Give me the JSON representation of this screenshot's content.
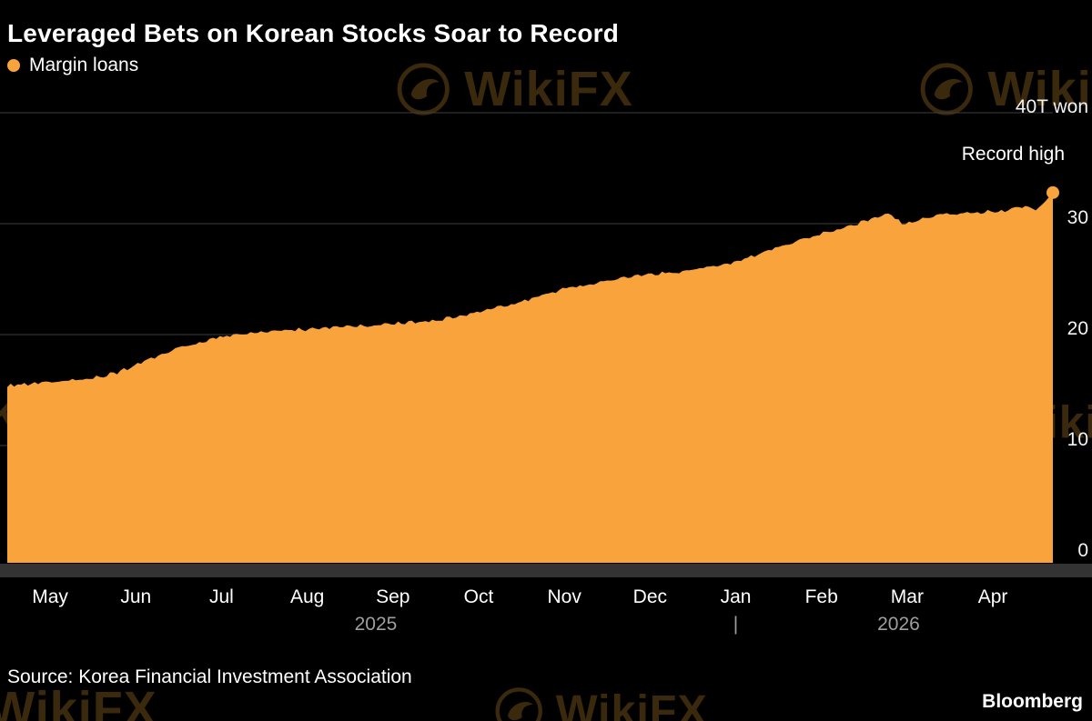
{
  "page": {
    "title": "Leveraged Bets on Korean Stocks Soar to Record"
  },
  "legend": {
    "label": "Margin loans",
    "color": "#F8A33B"
  },
  "annotation": "Record high",
  "footer": {
    "source": "Source: Korea Financial Investment Association",
    "brand": "Bloomberg"
  },
  "watermark": {
    "text": "WikiFX",
    "icon": "eagle-badge-icon"
  },
  "colors": {
    "background": "#000000",
    "area": "#F8A33B",
    "gridline": "#3E3E3E",
    "axis_band": "#333333",
    "year_label": "#9E9E9E",
    "text": "#FFFFFF"
  },
  "chart_data": {
    "type": "area",
    "title": "Leveraged Bets on Korean Stocks Soar to Record",
    "series_name": "Margin loans",
    "unit": "T won",
    "ylim": [
      0,
      40
    ],
    "grid": true,
    "legend_position": "top-left",
    "yticks": [
      {
        "value": 0,
        "label": "0"
      },
      {
        "value": 10,
        "label": "10"
      },
      {
        "value": 20,
        "label": "20"
      },
      {
        "value": 30,
        "label": "30"
      },
      {
        "value": 40,
        "label": "40T won"
      }
    ],
    "months": [
      "May",
      "Jun",
      "Jul",
      "Aug",
      "Sep",
      "Oct",
      "Nov",
      "Dec",
      "Jan",
      "Feb",
      "Mar",
      "Apr"
    ],
    "year_markers": [
      {
        "text": "2025",
        "t": 4.3
      },
      {
        "text": "|",
        "t": 8.5
      },
      {
        "text": "2026",
        "t": 10.4
      }
    ],
    "t_max": 12.2,
    "series": [
      {
        "name": "Margin loans",
        "anchors": [
          [
            0,
            15.4
          ],
          [
            0.3,
            15.6
          ],
          [
            0.5,
            15.7
          ],
          [
            0.8,
            15.9
          ],
          [
            1,
            16.1
          ],
          [
            1.3,
            16.6
          ],
          [
            1.5,
            17.3
          ],
          [
            1.8,
            18.2
          ],
          [
            2,
            18.8
          ],
          [
            2.3,
            19.4
          ],
          [
            2.5,
            19.8
          ],
          [
            3,
            20.2
          ],
          [
            3.5,
            20.5
          ],
          [
            4,
            20.7
          ],
          [
            4.5,
            21.0
          ],
          [
            5,
            21.3
          ],
          [
            5.5,
            22.0
          ],
          [
            6,
            23.0
          ],
          [
            6.5,
            24.1
          ],
          [
            7,
            24.9
          ],
          [
            7.5,
            25.4
          ],
          [
            8,
            25.8
          ],
          [
            8.5,
            26.6
          ],
          [
            9,
            27.9
          ],
          [
            9.5,
            29.1
          ],
          [
            10,
            30.2
          ],
          [
            10.3,
            31.0
          ],
          [
            10.45,
            29.9
          ],
          [
            10.8,
            30.7
          ],
          [
            11.2,
            31.0
          ],
          [
            11.6,
            31.1
          ],
          [
            11.9,
            31.6
          ],
          [
            12.0,
            31.2
          ],
          [
            12.1,
            31.9
          ],
          [
            12.2,
            32.8
          ]
        ]
      }
    ],
    "record_high": {
      "t": 12.2,
      "value": 32.8,
      "label": "Record high"
    }
  }
}
